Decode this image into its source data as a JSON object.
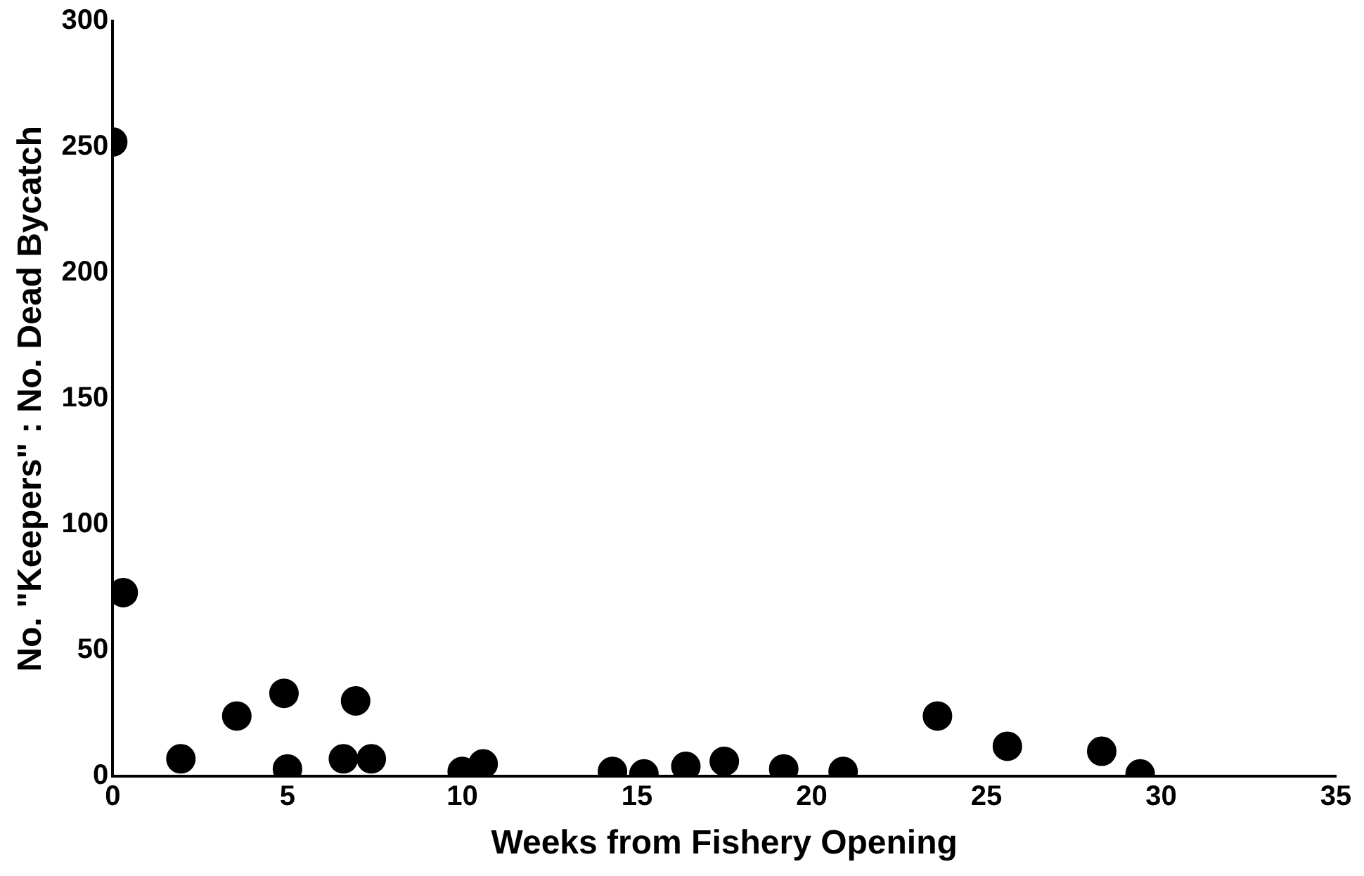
{
  "chart_data": {
    "type": "scatter",
    "xlabel": "Weeks from Fishery Opening",
    "ylabel": "No. \"Keepers\" : No. Dead Bycatch",
    "x": [
      0,
      0.3,
      1.95,
      3.55,
      4.9,
      5.0,
      6.6,
      6.95,
      7.4,
      10.0,
      10.6,
      14.3,
      15.2,
      16.4,
      17.5,
      19.2,
      20.9,
      23.6,
      25.6,
      28.3,
      29.4
    ],
    "series": [
      {
        "color": "#000000",
        "values": [
          252,
          73,
          7,
          24,
          33,
          3,
          7,
          30,
          7,
          2,
          5,
          2,
          1,
          4,
          6,
          3,
          2,
          24,
          12,
          10,
          1
        ]
      }
    ],
    "xlim": [
      0,
      35
    ],
    "xticks": [
      0,
      5,
      10,
      15,
      20,
      25,
      30,
      35
    ],
    "ylim": [
      0,
      300
    ],
    "yticks": [
      0,
      50,
      100,
      150,
      200,
      250,
      300
    ],
    "grid": false,
    "legend": false,
    "marker": "circle"
  }
}
